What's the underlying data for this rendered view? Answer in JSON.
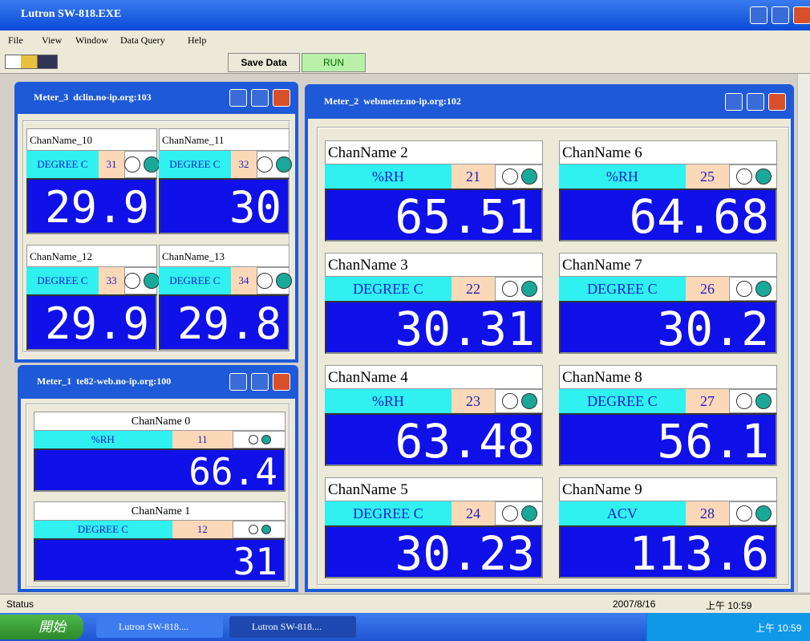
{
  "app": {
    "title": "Lutron SW-818.EXE",
    "menu": [
      "File",
      "View",
      "Window",
      "Data Query",
      "Help"
    ],
    "toolbar": [
      "Save Data",
      "RUN"
    ]
  },
  "windows": [
    {
      "title": "Meter_3  dclin.no-ip.org:103",
      "channels": [
        {
          "name": "ChanName_10",
          "unit": "DEGREE C",
          "id": "31",
          "reading": "29.9"
        },
        {
          "name": "ChanName_11",
          "unit": "DEGREE C",
          "id": "32",
          "reading": "30"
        },
        {
          "name": "ChanName_12",
          "unit": "DEGREE C",
          "id": "33",
          "reading": "29.9"
        },
        {
          "name": "ChanName_13",
          "unit": "DEGREE C",
          "id": "34",
          "reading": "29.8"
        }
      ]
    },
    {
      "title": "Meter_1  te82-web.no-ip.org:100",
      "channels": [
        {
          "name": "ChanName 0",
          "unit": "%RH",
          "id": "11",
          "reading": "66.4"
        },
        {
          "name": "ChanName 1",
          "unit": "DEGREE C",
          "id": "12",
          "reading": "31"
        }
      ]
    },
    {
      "title": "Meter_2  webmeter.no-ip.org:102",
      "channels": [
        {
          "name": "ChanName 2",
          "unit": "%RH",
          "id": "21",
          "reading": "65.51"
        },
        {
          "name": "ChanName 6",
          "unit": "%RH",
          "id": "25",
          "reading": "64.68"
        },
        {
          "name": "ChanName 3",
          "unit": "DEGREE C",
          "id": "22",
          "reading": "30.31"
        },
        {
          "name": "ChanName 7",
          "unit": "DEGREE C",
          "id": "26",
          "reading": "30.2"
        },
        {
          "name": "ChanName 4",
          "unit": "%RH",
          "id": "23",
          "reading": "63.48"
        },
        {
          "name": "ChanName 8",
          "unit": "DEGREE C",
          "id": "27",
          "reading": "56.1"
        },
        {
          "name": "ChanName 5",
          "unit": "DEGREE C",
          "id": "24",
          "reading": "30.23"
        },
        {
          "name": "ChanName 9",
          "unit": "ACV",
          "id": "28",
          "reading": "113.6"
        }
      ]
    }
  ],
  "status": {
    "text": "Status",
    "date": "2007/8/16",
    "time": "上午 10:59"
  },
  "taskbar": {
    "start": "開始",
    "tasks": [
      "Lutron SW-818....",
      "Lutron SW-818...."
    ],
    "clock": "上午 10:59"
  }
}
